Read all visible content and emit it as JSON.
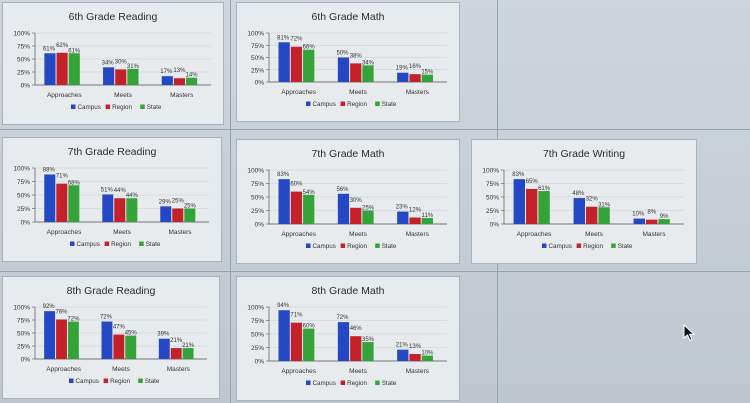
{
  "legend_labels": [
    "Campus",
    "Region",
    "State"
  ],
  "colors": {
    "campus": "#2447c4",
    "region": "#c4222a",
    "state": "#34a33a"
  },
  "chart_data": [
    {
      "type": "bar",
      "title": "6th Grade Reading",
      "categories": [
        "Approaches",
        "Meets",
        "Masters"
      ],
      "series": [
        {
          "name": "Campus",
          "values": [
            61,
            34,
            17
          ]
        },
        {
          "name": "Region",
          "values": [
            62,
            30,
            13
          ]
        },
        {
          "name": "State",
          "values": [
            61,
            31,
            14
          ]
        }
      ],
      "data_labels": [
        [
          "61%",
          "62%",
          "61%"
        ],
        [
          "34%",
          "30%",
          "31%"
        ],
        [
          "17%",
          "13%",
          "14%"
        ]
      ],
      "yticks": [
        "100%",
        "75%",
        "50%",
        "25%",
        "0%"
      ],
      "ylim": [
        0,
        100
      ],
      "legend": "bottom"
    },
    {
      "type": "bar",
      "title": "6th Grade Math",
      "categories": [
        "Approaches",
        "Meets",
        "Masters"
      ],
      "series": [
        {
          "name": "Campus",
          "values": [
            81,
            50,
            19
          ]
        },
        {
          "name": "Region",
          "values": [
            72,
            38,
            16
          ]
        },
        {
          "name": "State",
          "values": [
            66,
            34,
            15
          ]
        }
      ],
      "data_labels": [
        [
          "81%",
          "72%",
          "66%"
        ],
        [
          "50%",
          "38%",
          "34%"
        ],
        [
          "19%",
          "16%",
          "15%"
        ]
      ],
      "yticks": [
        "100%",
        "75%",
        "50%",
        "25%",
        "0%"
      ],
      "ylim": [
        0,
        100
      ],
      "legend": "bottom"
    },
    {
      "type": "bar",
      "title": "7th Grade Reading",
      "categories": [
        "Approaches",
        "Meets",
        "Masters"
      ],
      "series": [
        {
          "name": "Campus",
          "values": [
            88,
            51,
            29
          ]
        },
        {
          "name": "Region",
          "values": [
            71,
            44,
            25
          ]
        },
        {
          "name": "State",
          "values": [
            68,
            44,
            25
          ]
        }
      ],
      "data_labels": [
        [
          "88%",
          "71%",
          "68%"
        ],
        [
          "51%",
          "44%",
          "44%"
        ],
        [
          "29%",
          "25%",
          "25%"
        ]
      ],
      "yticks": [
        "100%",
        "75%",
        "50%",
        "25%",
        "0%"
      ],
      "ylim": [
        0,
        100
      ],
      "legend": "bottom"
    },
    {
      "type": "bar",
      "title": "7th Grade Math",
      "categories": [
        "Approaches",
        "Meets",
        "Masters"
      ],
      "series": [
        {
          "name": "Campus",
          "values": [
            83,
            56,
            23
          ]
        },
        {
          "name": "Region",
          "values": [
            60,
            30,
            12
          ]
        },
        {
          "name": "State",
          "values": [
            54,
            25,
            11
          ]
        }
      ],
      "data_labels": [
        [
          "83%",
          "60%",
          "54%"
        ],
        [
          "56%",
          "30%",
          "25%"
        ],
        [
          "23%",
          "12%",
          "11%"
        ]
      ],
      "yticks": [
        "100%",
        "75%",
        "50%",
        "25%",
        "0%"
      ],
      "ylim": [
        0,
        100
      ],
      "legend": "bottom"
    },
    {
      "type": "bar",
      "title": "7th Grade Writing",
      "categories": [
        "Approaches",
        "Meets",
        "Masters"
      ],
      "series": [
        {
          "name": "Campus",
          "values": [
            83,
            48,
            10
          ]
        },
        {
          "name": "Region",
          "values": [
            65,
            32,
            8
          ]
        },
        {
          "name": "State",
          "values": [
            61,
            31,
            9
          ]
        }
      ],
      "data_labels": [
        [
          "83%",
          "65%",
          "61%"
        ],
        [
          "48%",
          "32%",
          "31%"
        ],
        [
          "10%",
          "8%",
          "9%"
        ]
      ],
      "yticks": [
        "100%",
        "75%",
        "50%",
        "25%",
        "0%"
      ],
      "ylim": [
        0,
        100
      ],
      "legend": "bottom"
    },
    {
      "type": "bar",
      "title": "8th Grade Reading",
      "categories": [
        "Approaches",
        "Meets",
        "Masters"
      ],
      "series": [
        {
          "name": "Campus",
          "values": [
            92,
            72,
            39
          ]
        },
        {
          "name": "Region",
          "values": [
            76,
            47,
            21
          ]
        },
        {
          "name": "State",
          "values": [
            72,
            45,
            21
          ]
        }
      ],
      "data_labels": [
        [
          "92%",
          "76%",
          "72%"
        ],
        [
          "72%",
          "47%",
          "45%"
        ],
        [
          "39%",
          "21%",
          "21%"
        ]
      ],
      "yticks": [
        "100%",
        "75%",
        "50%",
        "25%",
        "0%"
      ],
      "ylim": [
        0,
        100
      ],
      "legend": "bottom"
    },
    {
      "type": "bar",
      "title": "8th Grade Math",
      "categories": [
        "Approaches",
        "Meets",
        "Masters"
      ],
      "series": [
        {
          "name": "Campus",
          "values": [
            94,
            72,
            21
          ]
        },
        {
          "name": "Region",
          "values": [
            71,
            46,
            13
          ]
        },
        {
          "name": "State",
          "values": [
            60,
            35,
            10
          ]
        }
      ],
      "data_labels": [
        [
          "94%",
          "71%",
          "60%"
        ],
        [
          "72%",
          "46%",
          "35%"
        ],
        [
          "21%",
          "13%",
          "10%"
        ]
      ],
      "yticks": [
        "100%",
        "75%",
        "50%",
        "25%",
        "0%"
      ],
      "ylim": [
        0,
        100
      ],
      "legend": "bottom"
    }
  ]
}
